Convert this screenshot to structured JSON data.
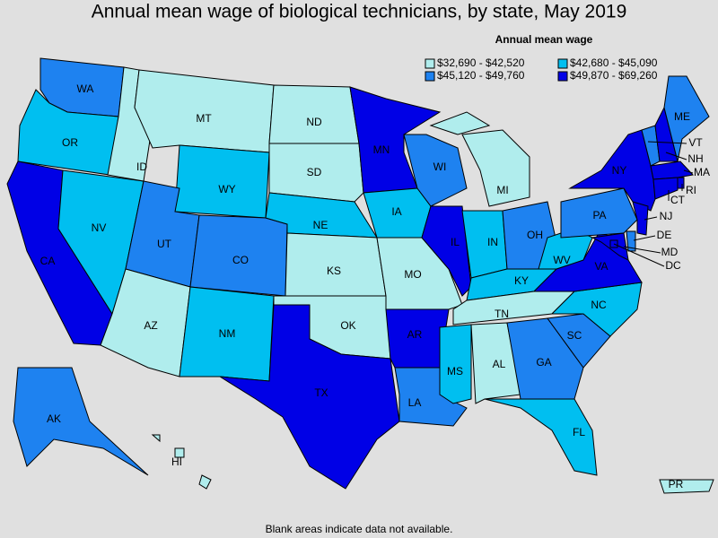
{
  "title": "Annual mean wage of biological technicians, by state, May 2019",
  "legend": {
    "title": "Annual mean wage",
    "items": [
      {
        "label": "$32,690 - $42,520",
        "color": "#b0eded"
      },
      {
        "label": "$42,680 - $45,090",
        "color": "#00bff0"
      },
      {
        "label": "$45,120 - $49,760",
        "color": "#1e82f0"
      },
      {
        "label": "$49,870 - $69,260",
        "color": "#0000e6"
      }
    ]
  },
  "states": [
    {
      "label": "WA",
      "class": 2
    },
    {
      "label": "OR",
      "class": 1
    },
    {
      "label": "CA",
      "class": 3
    },
    {
      "label": "NV",
      "class": 1
    },
    {
      "label": "ID",
      "class": 0
    },
    {
      "label": "MT",
      "class": 0
    },
    {
      "label": "WY",
      "class": 1
    },
    {
      "label": "UT",
      "class": 2
    },
    {
      "label": "CO",
      "class": 2
    },
    {
      "label": "AZ",
      "class": 0
    },
    {
      "label": "NM",
      "class": 1
    },
    {
      "label": "ND",
      "class": 0
    },
    {
      "label": "SD",
      "class": 0
    },
    {
      "label": "NE",
      "class": 1
    },
    {
      "label": "KS",
      "class": 0
    },
    {
      "label": "OK",
      "class": 0
    },
    {
      "label": "TX",
      "class": 3
    },
    {
      "label": "MN",
      "class": 3
    },
    {
      "label": "IA",
      "class": 1
    },
    {
      "label": "MO",
      "class": 0
    },
    {
      "label": "AR",
      "class": 3
    },
    {
      "label": "LA",
      "class": 2
    },
    {
      "label": "WI",
      "class": 2
    },
    {
      "label": "IL",
      "class": 3
    },
    {
      "label": "MI",
      "class": 0
    },
    {
      "label": "IN",
      "class": 1
    },
    {
      "label": "OH",
      "class": 2
    },
    {
      "label": "KY",
      "class": 1
    },
    {
      "label": "TN",
      "class": 0
    },
    {
      "label": "MS",
      "class": 1
    },
    {
      "label": "AL",
      "class": 0
    },
    {
      "label": "GA",
      "class": 2
    },
    {
      "label": "FL",
      "class": 1
    },
    {
      "label": "SC",
      "class": 2
    },
    {
      "label": "NC",
      "class": 1
    },
    {
      "label": "VA",
      "class": 3
    },
    {
      "label": "WV",
      "class": 1
    },
    {
      "label": "PA",
      "class": 2
    },
    {
      "label": "NY",
      "class": 3
    },
    {
      "label": "VT",
      "class": 2
    },
    {
      "label": "NH",
      "class": 3
    },
    {
      "label": "ME",
      "class": 2
    },
    {
      "label": "MA",
      "class": 3
    },
    {
      "label": "RI",
      "class": 3
    },
    {
      "label": "CT",
      "class": 3
    },
    {
      "label": "NJ",
      "class": 3
    },
    {
      "label": "DE",
      "class": 2
    },
    {
      "label": "MD",
      "class": 3
    },
    {
      "label": "DC",
      "class": 3
    },
    {
      "label": "AK",
      "class": 2
    },
    {
      "label": "HI",
      "class": 0
    },
    {
      "label": "PR",
      "class": 0
    }
  ],
  "note": "Blank areas indicate data not available."
}
